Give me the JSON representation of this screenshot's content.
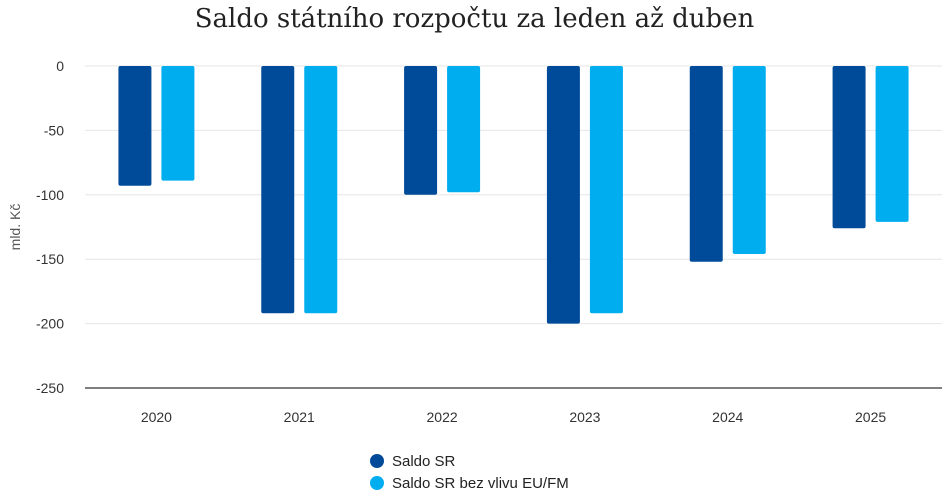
{
  "colors": {
    "series1": "#004b99",
    "series2": "#00adef",
    "grid": "#e6e6e6",
    "axis": "#333333"
  },
  "chart_data": {
    "type": "bar",
    "title": "Saldo státního rozpočtu za leden až duben",
    "ylabel": "mld. Kč",
    "xlabel": "",
    "ylim": [
      -250,
      0
    ],
    "yticks": [
      0,
      -50,
      -100,
      -150,
      -200,
      -250
    ],
    "categories": [
      "2020",
      "2021",
      "2022",
      "2023",
      "2024",
      "2025"
    ],
    "series": [
      {
        "name": "Saldo SR",
        "values": [
          -93,
          -192,
          -100,
          -200,
          -152,
          -126
        ]
      },
      {
        "name": "Saldo SR bez vlivu EU/FM",
        "values": [
          -89,
          -192,
          -98,
          -192,
          -146,
          -121
        ]
      }
    ],
    "grid": true,
    "legend": "bottom-center"
  }
}
